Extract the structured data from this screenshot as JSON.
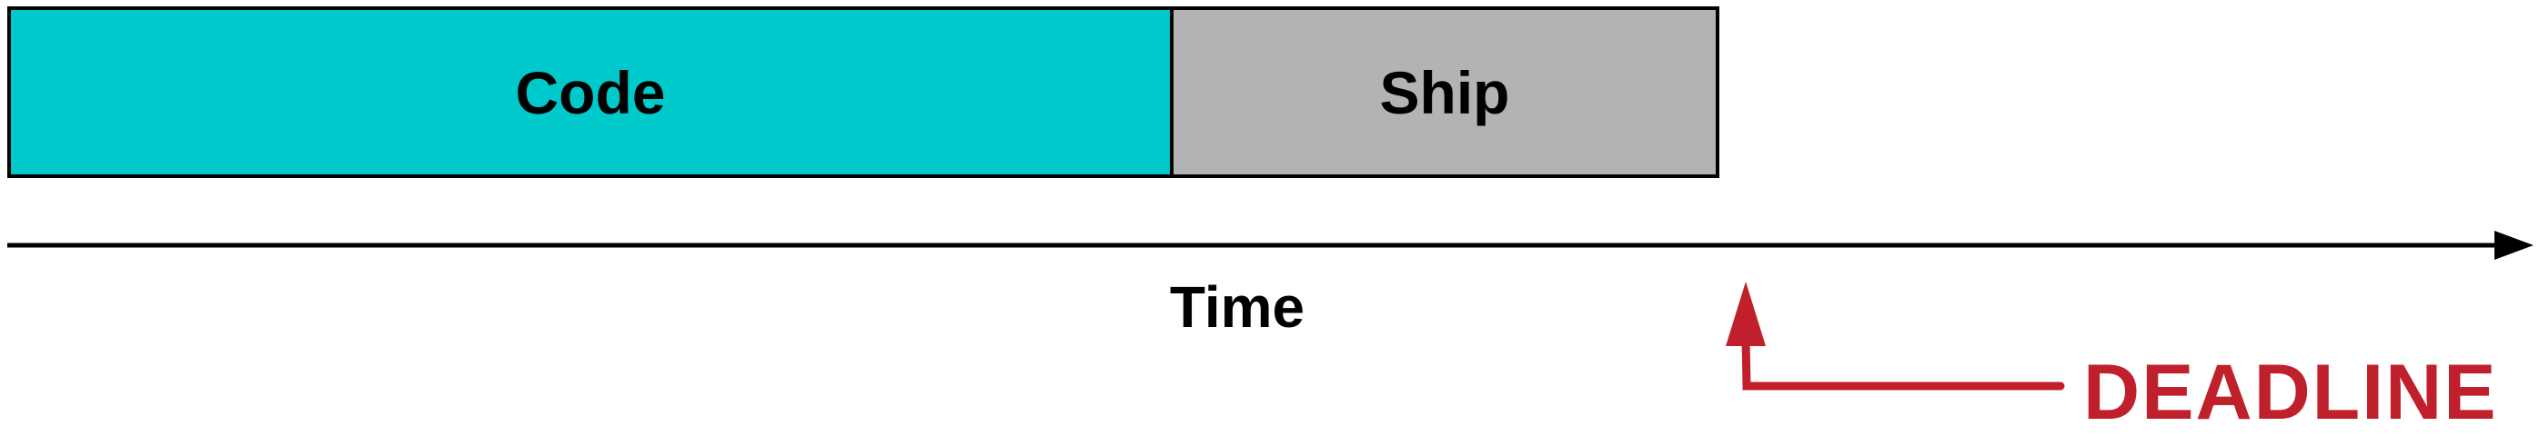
{
  "diagram": {
    "phases": [
      {
        "label": "Code",
        "color": "#00c9cb"
      },
      {
        "label": "Ship",
        "color": "#b3b3b3"
      }
    ],
    "axis_label": "Time",
    "deadline": {
      "label": "DEADLINE",
      "color": "#c0202b"
    }
  }
}
